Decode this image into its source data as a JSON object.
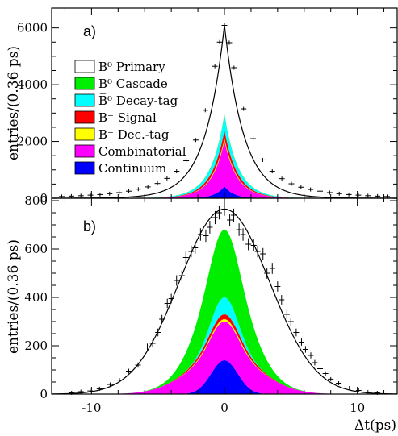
{
  "chart_data": [
    {
      "panel": "a)",
      "type": "area",
      "ylabel": "entries/(0.36 ps)",
      "xlim": [
        -13.0,
        13.0
      ],
      "ylim": [
        0,
        6700
      ],
      "yticks": [
        0,
        2000,
        4000,
        6000
      ],
      "ytick_labels": [
        "0",
        "2000",
        "4000",
        "6000"
      ],
      "xticks": [
        -10,
        0,
        10
      ],
      "shape": "exponential",
      "legend_position": "left",
      "legend": [
        {
          "label": "B̅⁰ Primary",
          "color": "#ffffff"
        },
        {
          "label": "B̅⁰ Cascade",
          "color": "#00ee00"
        },
        {
          "label": "B̅⁰ Decay-tag",
          "color": "#00ffff"
        },
        {
          "label": "B⁻ Signal",
          "color": "#ff0000"
        },
        {
          "label": "B⁻ Dec.-tag",
          "color": "#ffff00"
        },
        {
          "label": "Combinatorial",
          "color": "#ff00ff"
        },
        {
          "label": "Continuum",
          "color": "#0000ff"
        }
      ],
      "stack": [
        {
          "name": "Continuum",
          "color": "#0000ff",
          "peak": 420,
          "tau": 0.7
        },
        {
          "name": "Combinatorial",
          "color": "#ff00ff",
          "peak": 1600,
          "tau": 1.05
        },
        {
          "name": "B⁻ Dec.-tag",
          "color": "#ffff00",
          "peak": 90,
          "tau": 1.1
        },
        {
          "name": "B⁻ Signal",
          "color": "#ff0000",
          "peak": 280,
          "tau": 1.2
        },
        {
          "name": "B̅⁰ Decay-tag",
          "color": "#00ffff",
          "peak": 540,
          "tau": 1.2
        },
        {
          "name": "B̅⁰ Cascade",
          "color": "#00ee00",
          "peak": 40,
          "tau": 1.6
        }
      ],
      "fit": {
        "peak": 6100,
        "tau": 1.45
      },
      "points": [
        [
          -12.24,
          60
        ],
        [
          -11.52,
          75
        ],
        [
          -10.8,
          90
        ],
        [
          -10.08,
          110
        ],
        [
          -9.36,
          130
        ],
        [
          -8.64,
          160
        ],
        [
          -7.92,
          200
        ],
        [
          -7.2,
          250
        ],
        [
          -6.48,
          320
        ],
        [
          -5.76,
          400
        ],
        [
          -5.04,
          520
        ],
        [
          -4.32,
          700
        ],
        [
          -3.6,
          950
        ],
        [
          -2.88,
          1320
        ],
        [
          -2.16,
          2050
        ],
        [
          -1.44,
          3100
        ],
        [
          -0.72,
          4650
        ],
        [
          -0.36,
          5500
        ],
        [
          0.0,
          6090
        ],
        [
          0.36,
          5480
        ],
        [
          0.72,
          4600
        ],
        [
          1.44,
          3150
        ],
        [
          2.16,
          2100
        ],
        [
          2.88,
          1350
        ],
        [
          3.6,
          950
        ],
        [
          4.32,
          690
        ],
        [
          5.04,
          510
        ],
        [
          5.76,
          390
        ],
        [
          6.48,
          310
        ],
        [
          7.2,
          250
        ],
        [
          7.92,
          200
        ],
        [
          8.64,
          160
        ],
        [
          9.36,
          130
        ],
        [
          10.08,
          110
        ],
        [
          10.8,
          90
        ],
        [
          11.52,
          75
        ],
        [
          12.24,
          60
        ]
      ]
    },
    {
      "panel": "b)",
      "type": "area",
      "ylabel": "entries/(0.36 ps)",
      "xlabel": "Δt(ps)",
      "xlim": [
        -13.0,
        13.0
      ],
      "ylim": [
        0,
        810
      ],
      "yticks": [
        0,
        200,
        400,
        600,
        800
      ],
      "ytick_labels": [
        "0",
        "200",
        "400",
        "600",
        "800"
      ],
      "xticks": [
        -10,
        0,
        10
      ],
      "xtick_labels": [
        "-10",
        "0",
        "10"
      ],
      "shape": "gaussian",
      "stack": [
        {
          "name": "Continuum",
          "color": "#0000ff",
          "peak": 140,
          "sigma": 1.0
        },
        {
          "name": "Combinatorial",
          "color": "#ff00ff",
          "peak": 160,
          "sigma": 2.6
        },
        {
          "name": "B⁻ Dec.-tag",
          "color": "#ffff00",
          "peak": 10,
          "sigma": 1.5
        },
        {
          "name": "B⁻ Signal",
          "color": "#ff0000",
          "peak": 20,
          "sigma": 1.8
        },
        {
          "name": "B̅⁰ Decay-tag",
          "color": "#00ffff",
          "peak": 70,
          "sigma": 1.0
        },
        {
          "name": "B̅⁰ Cascade",
          "color": "#00ee00",
          "peak": 280,
          "sigma": 1.8
        }
      ],
      "fit": {
        "peak": 765,
        "sigma": 3.4
      },
      "points": [
        [
          -11.5,
          5
        ],
        [
          -10.8,
          10
        ],
        [
          -10.1,
          13
        ],
        [
          -9.4,
          22
        ],
        [
          -8.6,
          40
        ],
        [
          -7.9,
          58
        ],
        [
          -7.2,
          95
        ],
        [
          -6.5,
          120
        ],
        [
          -5.8,
          195
        ],
        [
          -5.4,
          210
        ],
        [
          -5.0,
          255
        ],
        [
          -4.7,
          310
        ],
        [
          -4.3,
          375
        ],
        [
          -4.0,
          395
        ],
        [
          -3.6,
          470
        ],
        [
          -3.2,
          490
        ],
        [
          -2.9,
          565
        ],
        [
          -2.5,
          590
        ],
        [
          -2.2,
          605
        ],
        [
          -1.8,
          660
        ],
        [
          -1.4,
          655
        ],
        [
          -1.1,
          690
        ],
        [
          -0.7,
          730
        ],
        [
          -0.4,
          750
        ],
        [
          0.0,
          765
        ],
        [
          0.4,
          720
        ],
        [
          0.7,
          740
        ],
        [
          1.1,
          680
        ],
        [
          1.4,
          660
        ],
        [
          1.8,
          620
        ],
        [
          2.2,
          615
        ],
        [
          2.5,
          590
        ],
        [
          2.9,
          580
        ],
        [
          3.2,
          500
        ],
        [
          3.6,
          520
        ],
        [
          4.0,
          445
        ],
        [
          4.3,
          390
        ],
        [
          4.7,
          330
        ],
        [
          5.0,
          300
        ],
        [
          5.4,
          255
        ],
        [
          5.8,
          215
        ],
        [
          6.1,
          185
        ],
        [
          6.5,
          160
        ],
        [
          6.8,
          130
        ],
        [
          7.2,
          105
        ],
        [
          7.6,
          85
        ],
        [
          8.0,
          62
        ],
        [
          8.6,
          45
        ],
        [
          9.4,
          25
        ],
        [
          10.1,
          15
        ],
        [
          10.8,
          8
        ],
        [
          11.5,
          5
        ]
      ]
    }
  ]
}
